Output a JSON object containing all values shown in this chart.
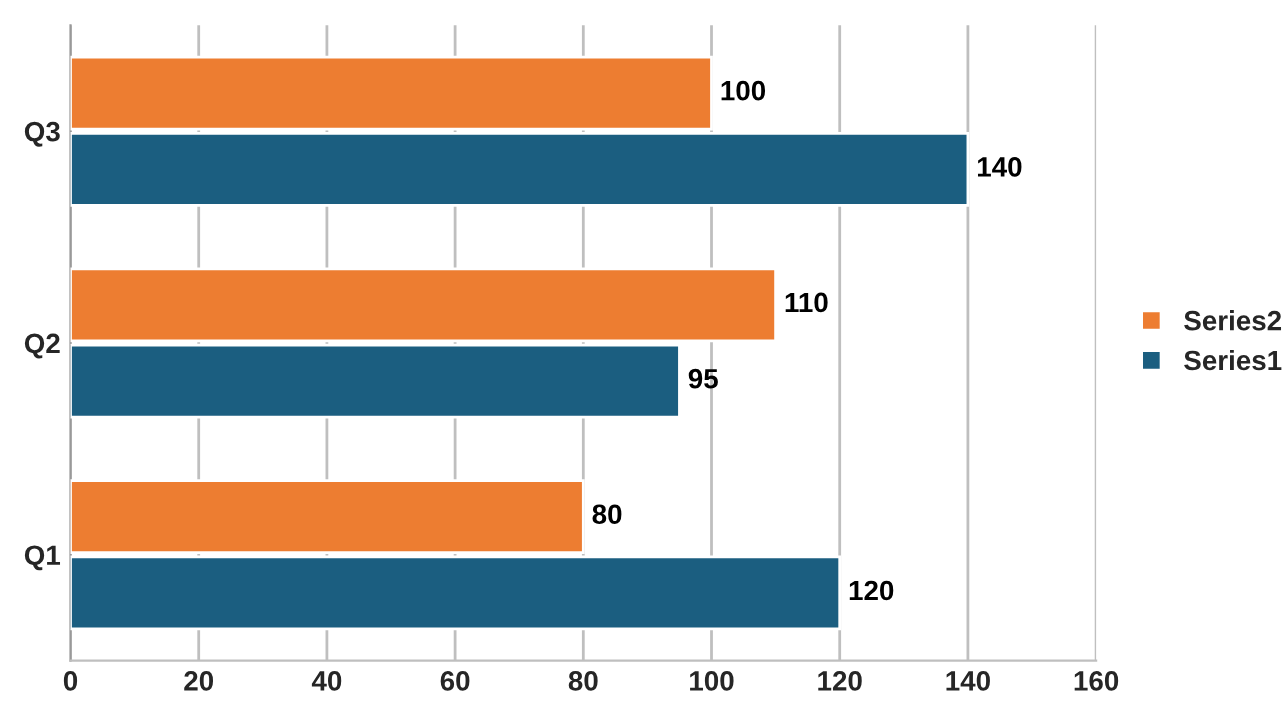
{
  "chart_data": {
    "type": "bar",
    "orientation": "horizontal",
    "categories": [
      "Q3",
      "Q2",
      "Q1"
    ],
    "series": [
      {
        "name": "Series1",
        "color": "#1b5e80",
        "values": [
          140,
          95,
          120
        ]
      },
      {
        "name": "Series2",
        "color": "#ed7d31",
        "values": [
          100,
          110,
          80
        ]
      }
    ],
    "xlim": [
      0,
      160
    ],
    "xticks": [
      0,
      20,
      40,
      60,
      80,
      100,
      120,
      140,
      160
    ],
    "grid": "x",
    "legend": "right",
    "data_labels": true
  }
}
